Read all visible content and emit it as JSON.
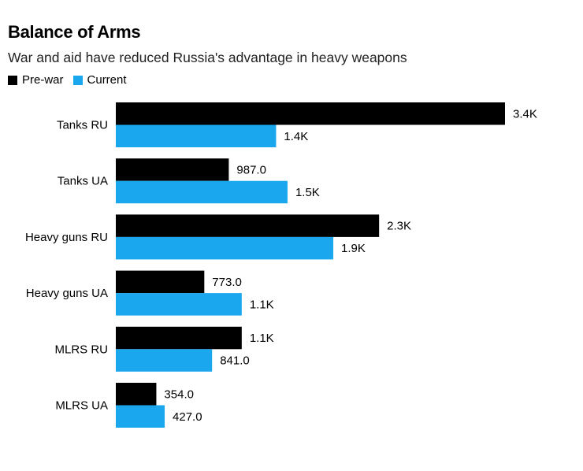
{
  "chart_data": {
    "type": "bar",
    "orientation": "horizontal",
    "title": "Balance of Arms",
    "subtitle": "War and aid have reduced Russia's advantage in heavy weapons",
    "categories": [
      "Tanks RU",
      "Tanks UA",
      "Heavy guns RU",
      "Heavy guns UA",
      "MLRS RU",
      "MLRS UA"
    ],
    "series": [
      {
        "name": "Pre-war",
        "color": "#000000",
        "values": [
          3400,
          987,
          2300,
          773,
          1100,
          354
        ],
        "labels": [
          "3.4K",
          "987.0",
          "2.3K",
          "773.0",
          "1.1K",
          "354.0"
        ]
      },
      {
        "name": "Current",
        "color": "#1aa7ee",
        "values": [
          1400,
          1500,
          1900,
          1100,
          841,
          427
        ],
        "labels": [
          "1.4K",
          "1.5K",
          "1.9K",
          "1.1K",
          "841.0",
          "427.0"
        ]
      }
    ],
    "xlim": [
      0,
      3400
    ],
    "legend_position": "top-left",
    "grid": false
  }
}
